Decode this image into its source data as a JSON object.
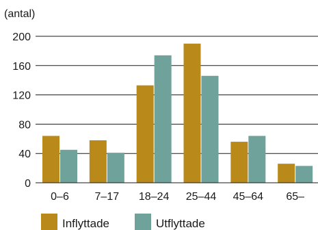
{
  "chart_data": {
    "type": "bar",
    "title": "",
    "ylabel": "(antal)",
    "xlabel": "",
    "ylim": [
      0,
      200
    ],
    "yticks": [
      0,
      40,
      80,
      120,
      160,
      200
    ],
    "categories": [
      "0–6",
      "7–17",
      "18–24",
      "25–44",
      "45–64",
      "65–"
    ],
    "series": [
      {
        "name": "Inflyttade",
        "color": "#b98a1a",
        "values": [
          64,
          58,
          133,
          190,
          56,
          26
        ]
      },
      {
        "name": "Utflyttade",
        "color": "#6fa29b",
        "values": [
          45,
          41,
          174,
          146,
          64,
          23
        ]
      }
    ],
    "grid": "horizontal",
    "legend": "bottom-left"
  }
}
